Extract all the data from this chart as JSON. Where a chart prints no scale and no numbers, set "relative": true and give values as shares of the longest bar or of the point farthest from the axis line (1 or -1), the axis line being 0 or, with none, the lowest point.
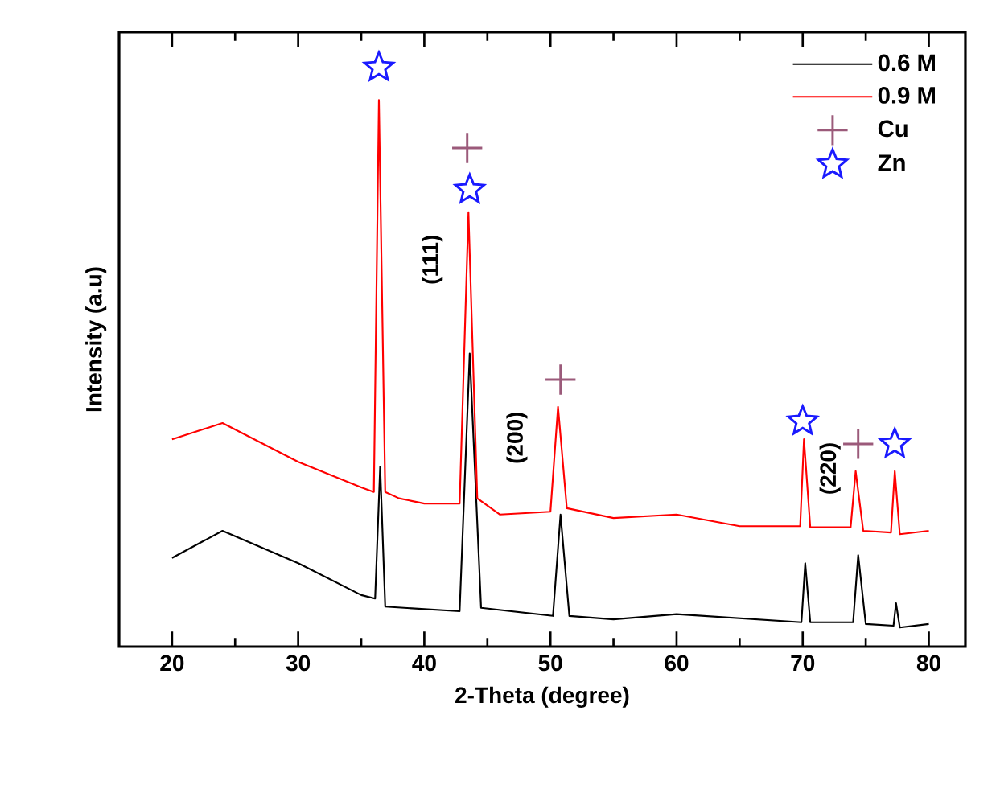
{
  "chart_data": {
    "type": "line",
    "relative": true,
    "xlabel": "2-Theta (degree)",
    "ylabel": "Intensity (a.u)",
    "xlim": [
      15.8,
      82.9
    ],
    "xticks": [
      20,
      30,
      40,
      50,
      60,
      70,
      80
    ],
    "legend": "top right",
    "tick_labels": "x",
    "line_style": "solid",
    "annotations": [
      "(111)",
      "(200)",
      "(220)"
    ],
    "series": [
      {
        "name": "0.6 M",
        "color": "#000000",
        "x": [
          20,
          24,
          30,
          35,
          36.1,
          36.5,
          36.9,
          42.8,
          43.6,
          44.5,
          50.2,
          50.8,
          51.5,
          55,
          60,
          69.9,
          70.2,
          70.6,
          74.0,
          74.4,
          75.0,
          77.2,
          77.4,
          77.7,
          80
        ],
        "values": [
          0.153,
          0.2,
          0.144,
          0.089,
          0.083,
          0.311,
          0.069,
          0.061,
          0.506,
          0.067,
          0.053,
          0.228,
          0.053,
          0.047,
          0.056,
          0.042,
          0.144,
          0.042,
          0.042,
          0.158,
          0.039,
          0.036,
          0.075,
          0.033,
          0.039
        ]
      },
      {
        "name": "0.9 M",
        "color": "#ff0000",
        "x": [
          20,
          24,
          30,
          35,
          36.0,
          36.4,
          36.9,
          38,
          40,
          42.8,
          43.5,
          44.2,
          46,
          50.0,
          50.6,
          51.3,
          55,
          60,
          65,
          69.8,
          70.1,
          70.6,
          73.8,
          74.2,
          74.8,
          77.0,
          77.3,
          77.7,
          80
        ],
        "values": [
          0.358,
          0.386,
          0.319,
          0.275,
          0.267,
          0.944,
          0.267,
          0.256,
          0.247,
          0.247,
          0.75,
          0.256,
          0.228,
          0.233,
          0.414,
          0.239,
          0.222,
          0.228,
          0.208,
          0.208,
          0.358,
          0.206,
          0.206,
          0.303,
          0.2,
          0.197,
          0.303,
          0.194,
          0.2
        ]
      },
      {
        "name": "Cu",
        "type": "scatter",
        "marker": "cross",
        "color": "#9b5a7a",
        "x": [
          43.4,
          50.8,
          74.4
        ],
        "values": [
          0.861,
          0.461,
          0.35
        ]
      },
      {
        "name": "Zn",
        "type": "scatter",
        "marker": "star",
        "color": "#1a1aff",
        "x": [
          36.4,
          43.6,
          70.0,
          77.3
        ],
        "values": [
          1.0,
          0.789,
          0.389,
          0.35
        ]
      }
    ]
  }
}
